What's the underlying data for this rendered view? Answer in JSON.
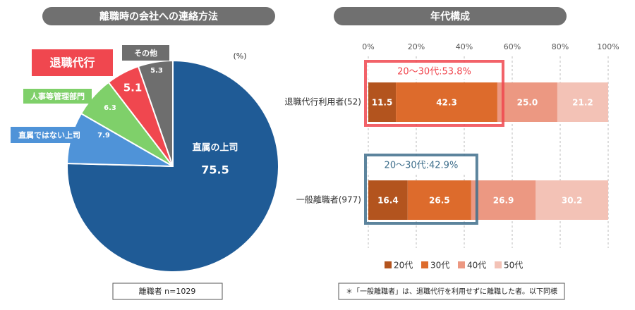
{
  "chart_data": [
    {
      "type": "pie",
      "title": "離職時の会社への連絡方法",
      "unit": "(%)",
      "categories": [
        "直属の上司",
        "直属ではない上司",
        "人事等管理部門",
        "退職代行",
        "その他"
      ],
      "values": [
        75.5,
        7.9,
        6.3,
        5.1,
        5.3
      ],
      "colors": [
        "#1f5b96",
        "#4f93d8",
        "#7fd06a",
        "#f0474f",
        "#6e6e6e"
      ],
      "note": "離職者 n=1029"
    },
    {
      "type": "stacked-bar-horizontal",
      "title": "年代構成",
      "categories": [
        "退職代行利用者(52)",
        "一般離職者(977)"
      ],
      "series": [
        {
          "name": "20代",
          "color": "#b3541e",
          "values": [
            11.5,
            16.4
          ],
          "value_labels": [
            "11.5",
            "16.4"
          ]
        },
        {
          "name": "30代",
          "color": "#dd6b2c",
          "values": [
            42.3,
            26.5
          ],
          "value_labels": [
            "42.3",
            "26.5"
          ]
        },
        {
          "name": "40代",
          "color": "#ec9882",
          "values": [
            25.0,
            26.9
          ],
          "value_labels": [
            "25.0",
            "26.9"
          ]
        },
        {
          "name": "50代",
          "color": "#f3c2b6",
          "values": [
            21.2,
            30.2
          ],
          "value_labels": [
            "21.2",
            "30.2"
          ]
        }
      ],
      "annotations": [
        {
          "text": "20～30代:53.8%",
          "color": "#f0474f"
        },
        {
          "text": "20～30代:42.9%",
          "color": "#3f6f8c"
        }
      ],
      "xlim": [
        0,
        100
      ],
      "xticks": [
        {
          "value": 0,
          "label": "0%"
        },
        {
          "value": 20,
          "label": "20%"
        },
        {
          "value": 40,
          "label": "40%"
        },
        {
          "value": 60,
          "label": "60%"
        },
        {
          "value": 80,
          "label": "80%"
        },
        {
          "value": 100,
          "label": "100%"
        }
      ],
      "grid": true,
      "note": "＊「一般離職者」は、退職代行を利用せずに離職した者。以下同様"
    }
  ]
}
